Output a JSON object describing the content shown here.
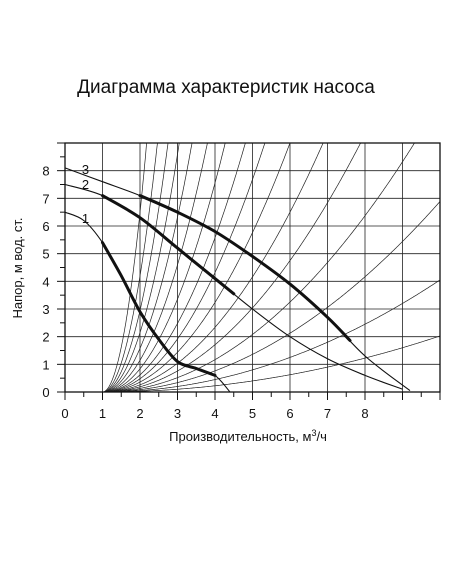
{
  "title": "Диаграмма характеристик насоса",
  "chart_data": {
    "type": "line",
    "title": "Диаграмма характеристик насоса",
    "xlabel": "Производительность, м³/ч",
    "xlabel_main": "Производительность, м",
    "xlabel_sup": "3",
    "xlabel_tail": "/ч",
    "ylabel": "Напор, м  вод. ст.",
    "xlim": [
      0,
      10
    ],
    "ylim": [
      0,
      9
    ],
    "x_ticks": [
      "0",
      "1",
      "2",
      "3",
      "4",
      "5",
      "6",
      "7",
      "8"
    ],
    "y_ticks": [
      "0",
      "1",
      "2",
      "3",
      "4",
      "5",
      "6",
      "7",
      "8"
    ],
    "grid": true,
    "series": [
      {
        "name": "1",
        "points": [
          [
            0,
            6.5
          ],
          [
            0.5,
            6.2
          ],
          [
            1,
            5.4
          ],
          [
            1.5,
            4.2
          ],
          [
            2,
            2.9
          ],
          [
            2.5,
            1.9
          ],
          [
            3,
            1.1
          ],
          [
            3.5,
            0.85
          ],
          [
            4,
            0.6
          ],
          [
            4.4,
            0
          ]
        ],
        "bold_range": [
          1,
          4
        ]
      },
      {
        "name": "2",
        "points": [
          [
            0,
            7.5
          ],
          [
            1,
            7.1
          ],
          [
            2,
            6.3
          ],
          [
            3,
            5.2
          ],
          [
            4,
            4.1
          ],
          [
            5,
            3
          ],
          [
            6,
            2
          ],
          [
            7,
            1.2
          ],
          [
            8,
            0.6
          ],
          [
            9,
            0.1
          ]
        ],
        "bold_range": [
          1,
          4.5
        ]
      },
      {
        "name": "3",
        "points": [
          [
            0,
            8.1
          ],
          [
            1,
            7.6
          ],
          [
            2,
            7.1
          ],
          [
            3,
            6.5
          ],
          [
            4,
            5.8
          ],
          [
            5,
            4.9
          ],
          [
            6,
            3.9
          ],
          [
            7,
            2.7
          ],
          [
            8,
            1.3
          ],
          [
            9.2,
            0.05
          ]
        ],
        "bold_range": [
          2,
          7.6
        ]
      }
    ],
    "system_curves": {
      "type": "parabolic",
      "origin": [
        1,
        0
      ],
      "constants": [
        6.5,
        4.2,
        2.95,
        2.15,
        1.58,
        1.15,
        0.84,
        0.62,
        0.48,
        0.36,
        0.26,
        0.19,
        0.13,
        0.085,
        0.05,
        0.025
      ]
    }
  }
}
